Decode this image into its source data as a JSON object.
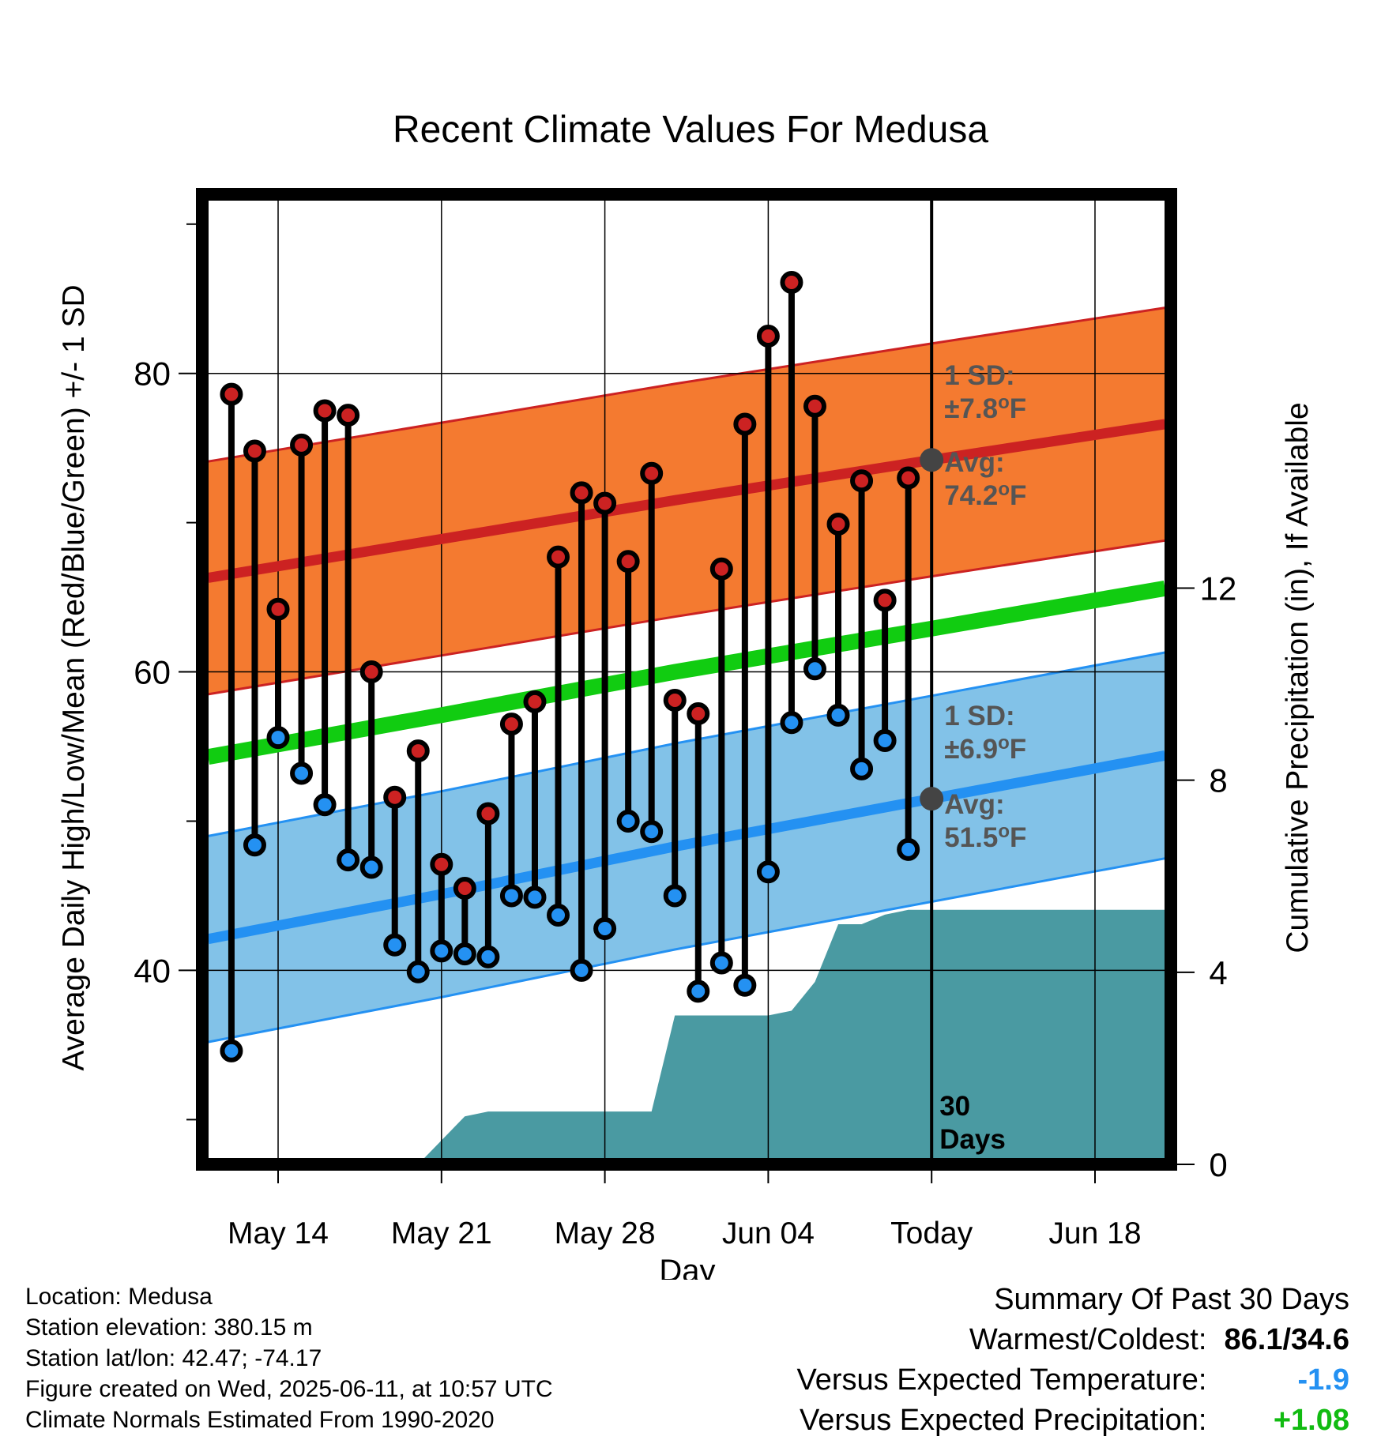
{
  "chart_data": {
    "type": "line",
    "title": "Recent Climate Values For Medusa",
    "xlabel": "Day",
    "ylabel": "Average Daily High/Low/Mean (Red/Blue/Green) +/- 1 SD",
    "y2label": "Cumulative Precipitation (in), If Available",
    "x_tick_labels": [
      "May 14",
      "May 21",
      "May 28",
      "Jun 04",
      "Today",
      "Jun 18"
    ],
    "x_tick_dates": [
      "2025-05-14",
      "2025-05-21",
      "2025-05-28",
      "2025-06-04",
      "2025-06-11",
      "2025-06-18"
    ],
    "xlim": [
      "2025-05-10 18:00",
      "2025-06-21 06:00"
    ],
    "today": "2025-06-11",
    "ylim": [
      27,
      92
    ],
    "y_ticks": [
      40,
      60,
      80
    ],
    "y_minor_ticks": [
      30,
      50,
      70,
      90
    ],
    "y2lim": [
      0,
      20.2
    ],
    "y2_ticks": [
      0,
      4,
      8,
      12
    ],
    "grid": true,
    "observations": [
      {
        "date": "2025-05-12",
        "high": 78.6,
        "low": 34.6
      },
      {
        "date": "2025-05-13",
        "high": 74.8,
        "low": 48.4
      },
      {
        "date": "2025-05-14",
        "high": 64.2,
        "low": 55.6
      },
      {
        "date": "2025-05-15",
        "high": 75.2,
        "low": 53.2
      },
      {
        "date": "2025-05-16",
        "high": 77.5,
        "low": 51.1
      },
      {
        "date": "2025-05-17",
        "high": 77.2,
        "low": 47.4
      },
      {
        "date": "2025-05-18",
        "high": 60.0,
        "low": 46.9
      },
      {
        "date": "2025-05-19",
        "high": 51.6,
        "low": 41.7
      },
      {
        "date": "2025-05-20",
        "high": 54.7,
        "low": 39.9
      },
      {
        "date": "2025-05-21",
        "high": 47.1,
        "low": 41.3
      },
      {
        "date": "2025-05-22",
        "high": 45.5,
        "low": 41.1
      },
      {
        "date": "2025-05-23",
        "high": 50.5,
        "low": 40.9
      },
      {
        "date": "2025-05-24",
        "high": 56.5,
        "low": 45.0
      },
      {
        "date": "2025-05-25",
        "high": 58.0,
        "low": 44.9
      },
      {
        "date": "2025-05-26",
        "high": 67.7,
        "low": 43.7
      },
      {
        "date": "2025-05-27",
        "high": 72.0,
        "low": 40.0
      },
      {
        "date": "2025-05-28",
        "high": 71.3,
        "low": 42.8
      },
      {
        "date": "2025-05-29",
        "high": 67.4,
        "low": 50.0
      },
      {
        "date": "2025-05-30",
        "high": 73.3,
        "low": 49.3
      },
      {
        "date": "2025-05-31",
        "high": 58.1,
        "low": 45.0
      },
      {
        "date": "2025-06-01",
        "high": 57.2,
        "low": 38.6
      },
      {
        "date": "2025-06-02",
        "high": 66.9,
        "low": 40.5
      },
      {
        "date": "2025-06-03",
        "high": 76.6,
        "low": 39.0
      },
      {
        "date": "2025-06-04",
        "high": 82.5,
        "low": 46.6
      },
      {
        "date": "2025-06-05",
        "high": 86.1,
        "low": 56.6
      },
      {
        "date": "2025-06-06",
        "high": 77.8,
        "low": 60.2
      },
      {
        "date": "2025-06-07",
        "high": 69.9,
        "low": 57.1
      },
      {
        "date": "2025-06-08",
        "high": 72.8,
        "low": 53.5
      },
      {
        "date": "2025-06-09",
        "high": 64.8,
        "low": 55.4
      },
      {
        "date": "2025-06-10",
        "high": 73.0,
        "low": 48.1
      }
    ],
    "normals": {
      "dates": [
        "2025-05-11",
        "2025-05-21",
        "2025-05-31",
        "2025-06-11",
        "2025-06-21"
      ],
      "high_mean": [
        66.3,
        68.9,
        71.5,
        74.2,
        76.6
      ],
      "low_mean": [
        42.1,
        45.1,
        48.3,
        51.5,
        54.4
      ],
      "avg_mean": [
        54.3,
        57.1,
        60.0,
        62.9,
        65.6
      ]
    },
    "sd_high": 7.8,
    "sd_low": 6.9,
    "precip_cumulative": {
      "dates": [
        "2025-05-11",
        "2025-05-20",
        "2025-05-21",
        "2025-05-22",
        "2025-05-23",
        "2025-05-26",
        "2025-05-30",
        "2025-05-31",
        "2025-06-04",
        "2025-06-05",
        "2025-06-06",
        "2025-06-07",
        "2025-06-08",
        "2025-06-09",
        "2025-06-10",
        "2025-06-11",
        "2025-06-21"
      ],
      "values": [
        0,
        0,
        0.5,
        1.0,
        1.1,
        1.1,
        1.1,
        3.1,
        3.1,
        3.2,
        3.8,
        5.0,
        5.0,
        5.2,
        5.3,
        5.3,
        5.3
      ]
    },
    "colors": {
      "high": "#cc2222",
      "high_band": "#f47a30",
      "low": "#2491f2",
      "low_band": "#82c2e8",
      "mean": "#11cc11",
      "precip": "#4a9aa2",
      "avg_marker": "#444444",
      "annotation": "#555555"
    },
    "annotations": {
      "high_sd": [
        "1 SD:",
        "±7.8°F"
      ],
      "high_avg": [
        "Avg:",
        "74.2°F"
      ],
      "low_sd": [
        "1 SD:",
        "±6.9°F"
      ],
      "low_avg": [
        "Avg:",
        "51.5°F"
      ],
      "days": [
        "30",
        "Days"
      ]
    }
  },
  "footer": {
    "location": "Location: Medusa",
    "elevation": "Station elevation: 380.15 m",
    "latlon": "Station lat/lon: 42.47; -74.17",
    "created": "Figure created on Wed, 2025-06-11, at 10:57 UTC",
    "normals": "Climate Normals Estimated From 1990-2020"
  },
  "summary": {
    "title": "Summary Of Past 30 Days",
    "warm_cold_label": "Warmest/Coldest:",
    "warm_cold_value": "86.1/34.6",
    "temp_label": "Versus Expected Temperature:",
    "temp_value": "-1.9",
    "precip_label": "Versus Expected Precipitation:",
    "precip_value": "+1.08",
    "temp_color": "#2491f2",
    "precip_color": "#11bb11"
  }
}
